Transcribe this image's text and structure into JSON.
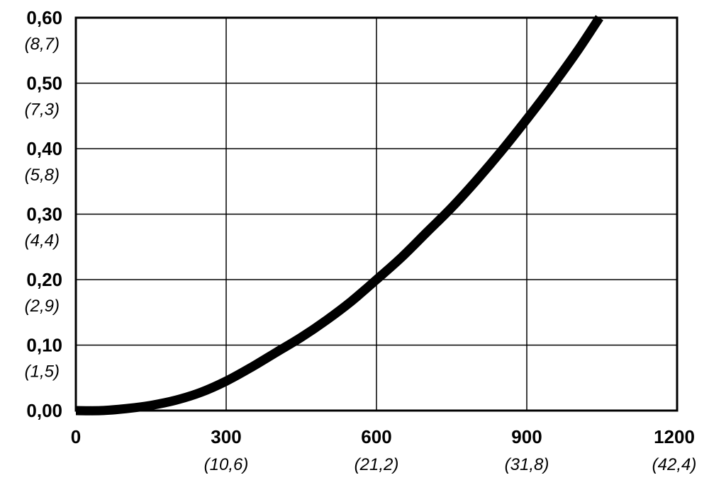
{
  "chart_data": {
    "type": "line",
    "title": "",
    "xlabel": "",
    "ylabel": "",
    "xlim": [
      0,
      1200
    ],
    "ylim": [
      0,
      0.6
    ],
    "grid": true,
    "legend": "none",
    "x_ticks": [
      {
        "value": 0,
        "label": "0",
        "sublabel": ""
      },
      {
        "value": 300,
        "label": "300",
        "sublabel": "(10,6)"
      },
      {
        "value": 600,
        "label": "600",
        "sublabel": "(21,2)"
      },
      {
        "value": 900,
        "label": "900",
        "sublabel": "(31,8)"
      },
      {
        "value": 1200,
        "label": "1200",
        "sublabel": "(42,4)"
      }
    ],
    "y_ticks": [
      {
        "value": 0.0,
        "label": "0,00",
        "sublabel": ""
      },
      {
        "value": 0.1,
        "label": "0,10",
        "sublabel": "(1,5)"
      },
      {
        "value": 0.2,
        "label": "0,20",
        "sublabel": "(2,9)"
      },
      {
        "value": 0.3,
        "label": "0,30",
        "sublabel": "(4,4)"
      },
      {
        "value": 0.4,
        "label": "0,40",
        "sublabel": "(5,8)"
      },
      {
        "value": 0.5,
        "label": "0,50",
        "sublabel": "(7,3)"
      },
      {
        "value": 0.6,
        "label": "0,60",
        "sublabel": "(8,7)"
      }
    ],
    "series": [
      {
        "name": "",
        "color": "#000000",
        "x": [
          0,
          50,
          100,
          150,
          200,
          250,
          300,
          350,
          400,
          450,
          500,
          550,
          600,
          650,
          700,
          750,
          800,
          850,
          900,
          950,
          1000,
          1045
        ],
        "y": [
          0.0,
          0.0,
          0.003,
          0.008,
          0.016,
          0.028,
          0.045,
          0.066,
          0.089,
          0.112,
          0.138,
          0.167,
          0.2,
          0.234,
          0.272,
          0.31,
          0.352,
          0.397,
          0.445,
          0.495,
          0.548,
          0.6
        ]
      }
    ]
  }
}
